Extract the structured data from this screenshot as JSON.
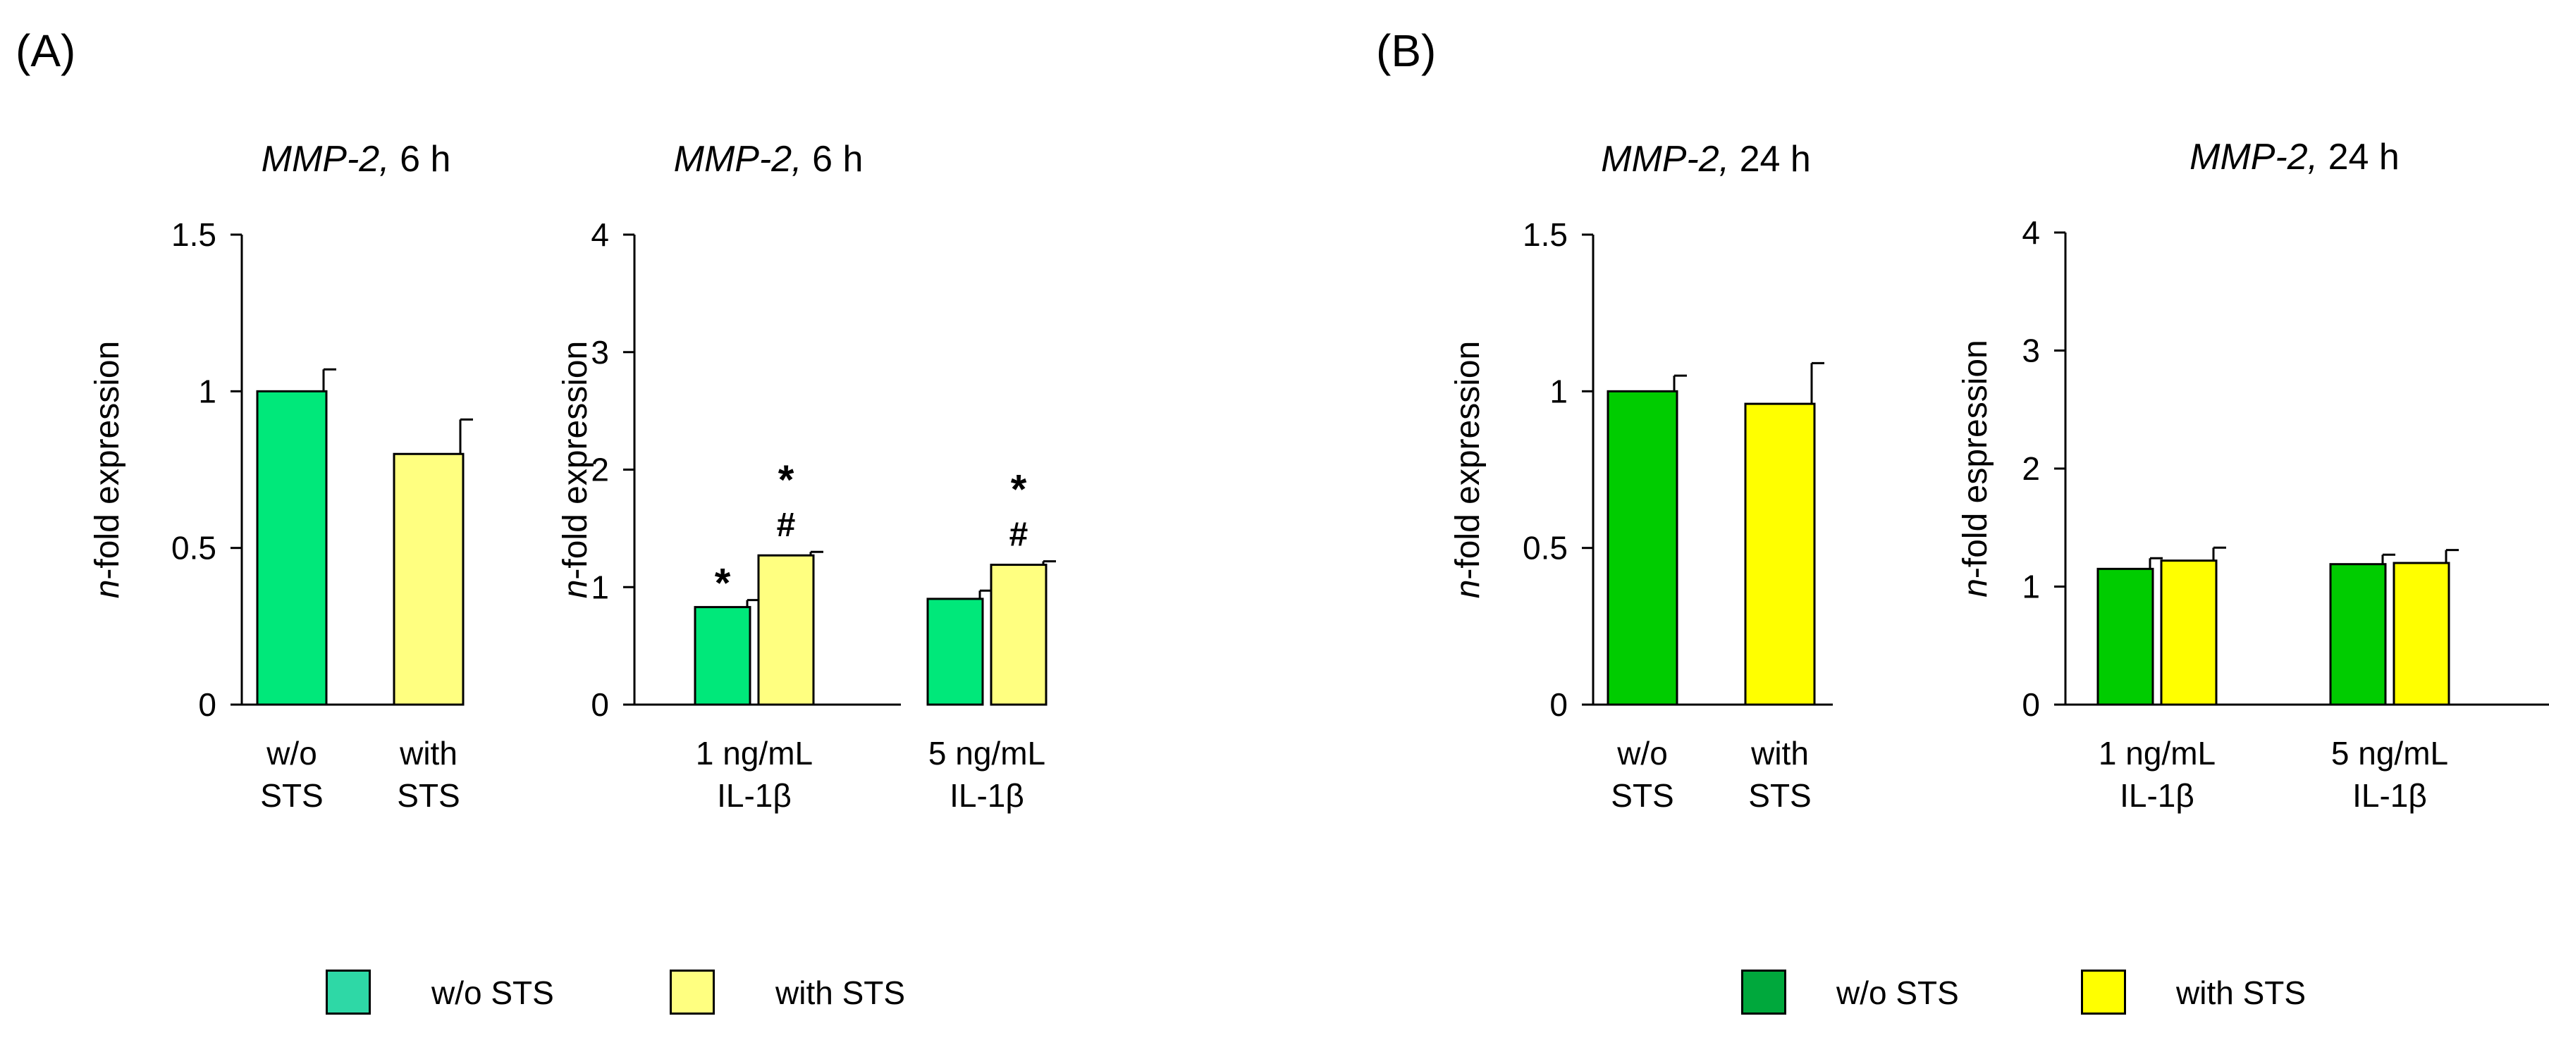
{
  "panels": {
    "A": {
      "label": "(A)"
    },
    "B": {
      "label": "(B)"
    }
  },
  "legends": {
    "A": {
      "without": "w/o STS",
      "with": "with STS",
      "without_color": "#2ed8a6",
      "with_color": "#ffff80"
    },
    "B": {
      "without": "w/o STS",
      "with": "with STS",
      "without_color": "#00a83c",
      "with_color": "#ffff00"
    }
  },
  "chart_data": [
    {
      "id": "A1",
      "type": "bar",
      "title_gene": "MMP-2,",
      "title_time": " 6 h",
      "ylabel_italic": "n",
      "ylabel_rest": "-fold expression",
      "ylim": [
        0,
        1.5
      ],
      "yticks": [
        0,
        0.5,
        1,
        1.5
      ],
      "ytick_labels": [
        "0",
        "0.5",
        "1",
        "1.5"
      ],
      "categories": [
        {
          "lines": [
            "w/o",
            "STS"
          ]
        },
        {
          "lines": [
            "with",
            "STS"
          ]
        }
      ],
      "bars": [
        {
          "value": 1.0,
          "error": 0.07,
          "color": "#00e87a",
          "mark": []
        },
        {
          "value": 0.8,
          "error": 0.11,
          "color": "#ffff80",
          "mark": []
        }
      ]
    },
    {
      "id": "A2",
      "type": "bar",
      "title_gene": "MMP-2,",
      "title_time": " 6 h",
      "ylabel_italic": "n",
      "ylabel_rest": "-fold expression",
      "ylim": [
        0,
        4
      ],
      "yticks": [
        0,
        1,
        2,
        3,
        4
      ],
      "ytick_labels": [
        "0",
        "1",
        "2",
        "3",
        "4"
      ],
      "categories": [
        {
          "lines": [
            "1 ng/mL",
            "IL-1β"
          ]
        },
        {
          "lines": [
            "5 ng/mL",
            "IL-1β"
          ]
        }
      ],
      "series": [
        {
          "name": "w/o STS",
          "color": "#00e87a",
          "values": [
            0.83,
            0.9
          ],
          "errors": [
            0.06,
            0.07
          ],
          "marks": [
            [
              "*"
            ],
            []
          ]
        },
        {
          "name": "with STS",
          "color": "#ffff80",
          "values": [
            1.27,
            1.19
          ],
          "errors": [
            0.03,
            0.03
          ],
          "marks": [
            [
              "*",
              "#"
            ],
            [
              "*",
              "#"
            ]
          ]
        }
      ]
    },
    {
      "id": "B1",
      "type": "bar",
      "title_gene": "MMP-2,",
      "title_time": " 24 h",
      "ylabel_italic": "n",
      "ylabel_rest": "-fold expression",
      "ylim": [
        0,
        1.5
      ],
      "yticks": [
        0,
        0.5,
        1,
        1.5
      ],
      "ytick_labels": [
        "0",
        "0.5",
        "1",
        "1.5"
      ],
      "categories": [
        {
          "lines": [
            "w/o",
            "STS"
          ]
        },
        {
          "lines": [
            "with",
            "STS"
          ]
        }
      ],
      "bars": [
        {
          "value": 1.0,
          "error": 0.05,
          "color": "#00cc00",
          "mark": []
        },
        {
          "value": 0.96,
          "error": 0.13,
          "color": "#ffff00",
          "mark": []
        }
      ]
    },
    {
      "id": "B2",
      "type": "bar",
      "title_gene": "MMP-2,",
      "title_time": " 24 h",
      "ylabel_italic": "n",
      "ylabel_rest": "-fold espression",
      "ylim": [
        0,
        4
      ],
      "yticks": [
        0,
        1,
        2,
        3,
        4
      ],
      "ytick_labels": [
        "0",
        "1",
        "2",
        "3",
        "4"
      ],
      "categories": [
        {
          "lines": [
            "1 ng/mL",
            "IL-1β"
          ]
        },
        {
          "lines": [
            "5 ng/mL",
            "IL-1β"
          ]
        }
      ],
      "series": [
        {
          "name": "w/o STS",
          "color": "#00cc00",
          "values": [
            1.15,
            1.19
          ],
          "errors": [
            0.09,
            0.08
          ],
          "marks": [
            [],
            []
          ]
        },
        {
          "name": "with STS",
          "color": "#ffff00",
          "values": [
            1.22,
            1.2
          ],
          "errors": [
            0.11,
            0.11
          ],
          "marks": [
            [],
            []
          ]
        }
      ]
    }
  ]
}
